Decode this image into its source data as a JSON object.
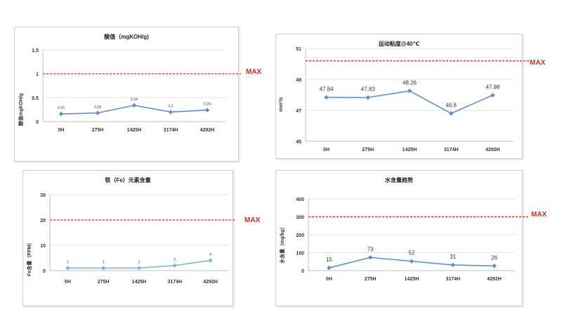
{
  "chart_data": [
    {
      "type": "line",
      "title": "酸值（mgKOH/g)",
      "ylabel": "酸值mgKOH/g",
      "categories": [
        "0H",
        "275H",
        "1425H",
        "3174H",
        "4292H"
      ],
      "values": [
        0.16,
        0.18,
        0.34,
        0.2,
        0.24
      ],
      "data_labels": [
        "0.16",
        "0.18",
        "0.34",
        "0.2",
        "0.24"
      ],
      "ylim": [
        0,
        1.5
      ],
      "yticks": [
        0,
        0.5,
        1,
        1.5
      ],
      "ytick_labels": [
        "0",
        "0.5",
        "1",
        "1.5"
      ],
      "limit": 1,
      "limit_label": "MAX",
      "grid": true,
      "line_color": "#5b8fcc",
      "limit_color": "#e0281e"
    },
    {
      "type": "line",
      "title": "运动粘度@40℃",
      "ylabel": "mm²/s",
      "categories": [
        "0H",
        "275H",
        "1425H",
        "3174H",
        "4292H"
      ],
      "values": [
        47.84,
        47.83,
        48.26,
        46.8,
        47.98
      ],
      "data_labels": [
        "47.84",
        "47.83",
        "48.26",
        "46.8",
        "47.98"
      ],
      "ylim": [
        45,
        51
      ],
      "yticks": [
        45,
        47,
        49,
        51
      ],
      "ytick_labels": [
        "45",
        "47",
        "49",
        "51"
      ],
      "limit": 50.2,
      "limit_label": "MAX",
      "grid": true,
      "line_color": "#5b8fcc",
      "limit_color": "#e0281e"
    },
    {
      "type": "line",
      "title": "铁（Fe）元素含量",
      "ylabel": "Fe含量（PPM）",
      "categories": [
        "0H",
        "275H",
        "1425H",
        "3174H",
        "4292H"
      ],
      "values": [
        1,
        1,
        1,
        2,
        4
      ],
      "data_labels": [
        "1",
        "1",
        "1",
        "2",
        "4"
      ],
      "ylim": [
        0,
        30
      ],
      "yticks": [
        0,
        10,
        20,
        30
      ],
      "ytick_labels": [
        "0",
        "10",
        "20",
        "30"
      ],
      "limit": 20,
      "limit_label": "MAX",
      "grid": true,
      "line_color": "#7eb6e0",
      "limit_color": "#e0281e"
    },
    {
      "type": "line",
      "title": "水含量趋势",
      "ylabel": "水含量（mg/kg）",
      "categories": [
        "0H",
        "275H",
        "1425H",
        "3174H",
        "4292H"
      ],
      "values": [
        15,
        73,
        52,
        31,
        26
      ],
      "data_labels": [
        "15",
        "73",
        "52",
        "31",
        "26"
      ],
      "ylim": [
        0,
        400
      ],
      "yticks": [
        0,
        100,
        200,
        300,
        400
      ],
      "ytick_labels": [
        "0",
        "100",
        "200",
        "300",
        "400"
      ],
      "limit": 300,
      "limit_label": "MAX",
      "grid": true,
      "line_color": "#5b8fcc",
      "limit_color": "#e0281e"
    }
  ]
}
